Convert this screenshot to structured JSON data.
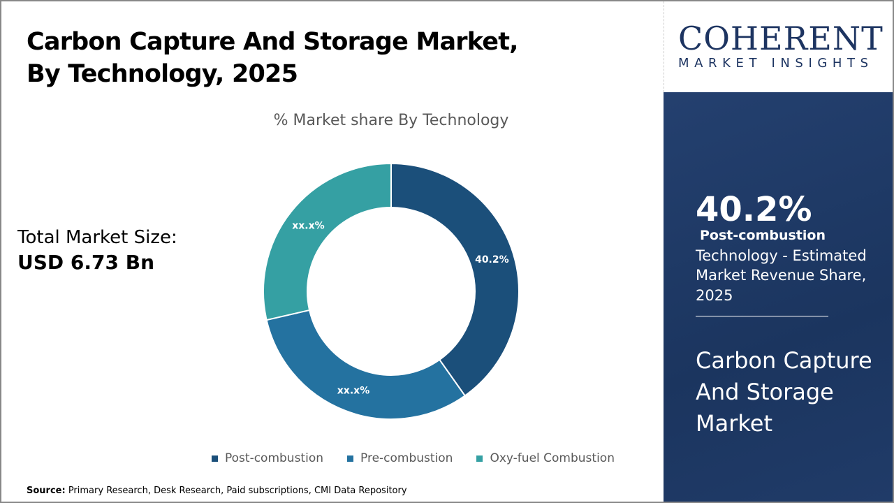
{
  "title": "Carbon Capture And Storage Market, By Technology, 2025",
  "total": {
    "label": "Total Market Size:",
    "value": "USD 6.73 Bn"
  },
  "source": {
    "label": "Source:",
    "text": " Primary Research, Desk Research, Paid subscriptions, CMI Data Repository"
  },
  "logo": {
    "main": "COHERENT",
    "sub": "MARKET INSIGHTS"
  },
  "panel": {
    "pct": "40.2%",
    "segment": "Post-combustion",
    "desc": "Technology - Estimated Market Revenue Share, 2025",
    "market": "Carbon Capture And Storage Market"
  },
  "chart_data": {
    "type": "pie",
    "donut": true,
    "title": "% Market share By Technology",
    "categories": [
      "Post-combustion",
      "Pre-combustion",
      "Oxy-fuel Combustion"
    ],
    "values": [
      40.2,
      31.2,
      28.6
    ],
    "data_labels": [
      "40.2%",
      "xx.x%",
      "xx.x%"
    ],
    "colors": [
      "#1b4f7a",
      "#2472a0",
      "#35a0a3"
    ],
    "legend": "bottom"
  }
}
